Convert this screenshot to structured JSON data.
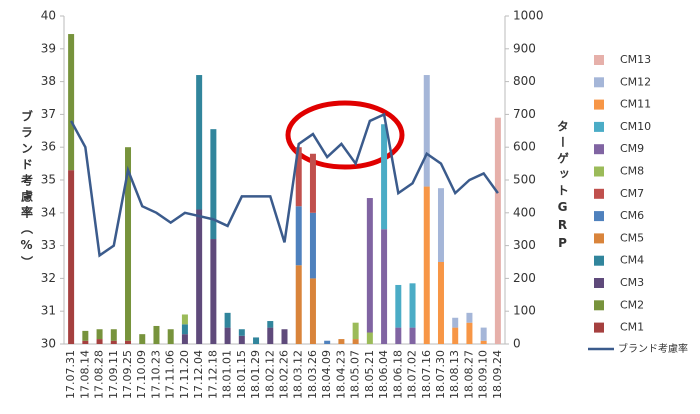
{
  "chart_data": {
    "type": "combo",
    "y_label": "ブランド考慮率（%）",
    "y2_label": "ターゲットGRP",
    "categories": [
      "17.07.31",
      "17.08.14",
      "17.08.28",
      "17.09.11",
      "17.09.25",
      "17.10.09",
      "17.10.23",
      "17.11.06",
      "17.11.20",
      "17.12.04",
      "17.12.18",
      "18.01.01",
      "18.01.15",
      "18.01.29",
      "18.02.12",
      "18.02.26",
      "18.03.12",
      "18.03.26",
      "18.04.09",
      "18.04.23",
      "18.05.07",
      "18.05.21",
      "18.06.04",
      "18.06.18",
      "18.07.02",
      "18.07.16",
      "18.07.30",
      "18.08.13",
      "18.08.27",
      "18.09.10",
      "18.09.24"
    ],
    "ylim": [
      30,
      40
    ],
    "yticks": [
      30,
      31,
      32,
      33,
      34,
      35,
      36,
      37,
      38,
      39,
      40
    ],
    "y2lim": [
      0,
      1000
    ],
    "y2ticks": [
      0,
      100,
      200,
      300,
      400,
      500,
      600,
      700,
      800,
      900,
      1000
    ],
    "grid": false,
    "series": [
      {
        "name": "CM1",
        "type": "bar",
        "axis": "y2",
        "color": "#a5403f",
        "values": [
          530,
          10,
          15,
          10,
          10,
          0,
          0,
          0,
          0,
          0,
          0,
          0,
          0,
          0,
          0,
          0,
          0,
          0,
          0,
          0,
          0,
          0,
          0,
          0,
          0,
          0,
          0,
          0,
          0,
          0,
          0
        ]
      },
      {
        "name": "CM2",
        "type": "bar",
        "axis": "y2",
        "color": "#77933c",
        "values": [
          415,
          30,
          30,
          35,
          590,
          30,
          55,
          45,
          0,
          0,
          0,
          0,
          0,
          0,
          0,
          0,
          0,
          0,
          0,
          0,
          0,
          0,
          0,
          0,
          0,
          0,
          0,
          0,
          0,
          0,
          0
        ]
      },
      {
        "name": "CM3",
        "type": "bar",
        "axis": "y2",
        "color": "#5f4a7b",
        "values": [
          0,
          0,
          0,
          0,
          0,
          0,
          0,
          0,
          30,
          410,
          320,
          50,
          25,
          0,
          50,
          45,
          0,
          0,
          0,
          0,
          0,
          0,
          0,
          0,
          0,
          0,
          0,
          0,
          0,
          0,
          0
        ]
      },
      {
        "name": "CM4",
        "type": "bar",
        "axis": "y2",
        "color": "#31859c",
        "values": [
          0,
          0,
          0,
          0,
          0,
          0,
          0,
          0,
          30,
          410,
          335,
          45,
          20,
          20,
          20,
          0,
          0,
          0,
          0,
          0,
          0,
          0,
          0,
          0,
          0,
          0,
          0,
          0,
          0,
          0,
          0
        ]
      },
      {
        "name": "CM5",
        "type": "bar",
        "axis": "y2",
        "color": "#d9843b",
        "values": [
          0,
          0,
          0,
          0,
          0,
          0,
          0,
          0,
          0,
          0,
          0,
          0,
          0,
          0,
          0,
          0,
          240,
          200,
          0,
          15,
          15,
          0,
          0,
          0,
          0,
          0,
          0,
          0,
          0,
          0,
          0
        ]
      },
      {
        "name": "CM6",
        "type": "bar",
        "axis": "y2",
        "color": "#4f81bd",
        "values": [
          0,
          0,
          0,
          0,
          0,
          0,
          0,
          0,
          0,
          0,
          0,
          0,
          0,
          0,
          0,
          0,
          180,
          200,
          10,
          0,
          0,
          0,
          0,
          0,
          0,
          0,
          0,
          0,
          0,
          0,
          0
        ]
      },
      {
        "name": "CM7",
        "type": "bar",
        "axis": "y2",
        "color": "#c0504d",
        "values": [
          0,
          0,
          0,
          0,
          0,
          0,
          0,
          0,
          0,
          0,
          0,
          0,
          0,
          0,
          0,
          0,
          180,
          180,
          0,
          0,
          0,
          0,
          0,
          0,
          0,
          0,
          0,
          0,
          0,
          0,
          0
        ]
      },
      {
        "name": "CM8",
        "type": "bar",
        "axis": "y2",
        "color": "#9bbb59",
        "values": [
          0,
          0,
          0,
          0,
          0,
          0,
          0,
          0,
          30,
          0,
          0,
          0,
          0,
          0,
          0,
          0,
          0,
          0,
          0,
          0,
          50,
          35,
          0,
          0,
          0,
          0,
          0,
          0,
          0,
          0,
          0
        ]
      },
      {
        "name": "CM9",
        "type": "bar",
        "axis": "y2",
        "color": "#8064a2",
        "values": [
          0,
          0,
          0,
          0,
          0,
          0,
          0,
          0,
          0,
          0,
          0,
          0,
          0,
          0,
          0,
          0,
          0,
          0,
          0,
          0,
          0,
          410,
          350,
          50,
          50,
          0,
          0,
          0,
          0,
          0,
          0
        ]
      },
      {
        "name": "CM10",
        "type": "bar",
        "axis": "y2",
        "color": "#4bacc6",
        "values": [
          0,
          0,
          0,
          0,
          0,
          0,
          0,
          0,
          0,
          0,
          0,
          0,
          0,
          0,
          0,
          0,
          0,
          0,
          0,
          0,
          0,
          0,
          320,
          130,
          135,
          0,
          0,
          0,
          0,
          0,
          0
        ]
      },
      {
        "name": "CM11",
        "type": "bar",
        "axis": "y2",
        "color": "#f79646",
        "values": [
          0,
          0,
          0,
          0,
          0,
          0,
          0,
          0,
          0,
          0,
          0,
          0,
          0,
          0,
          0,
          0,
          0,
          0,
          0,
          0,
          0,
          0,
          0,
          0,
          0,
          480,
          250,
          50,
          65,
          10,
          0
        ]
      },
      {
        "name": "CM12",
        "type": "bar",
        "axis": "y2",
        "color": "#a5b6d8",
        "values": [
          0,
          0,
          0,
          0,
          0,
          0,
          0,
          0,
          0,
          0,
          0,
          0,
          0,
          0,
          0,
          0,
          0,
          0,
          0,
          0,
          0,
          0,
          0,
          0,
          0,
          340,
          225,
          30,
          30,
          40,
          0
        ]
      },
      {
        "name": "CM13",
        "type": "bar",
        "axis": "y2",
        "color": "#e6b0aa",
        "values": [
          0,
          0,
          0,
          0,
          0,
          0,
          0,
          0,
          0,
          0,
          0,
          0,
          0,
          0,
          0,
          0,
          0,
          0,
          0,
          0,
          0,
          0,
          0,
          0,
          0,
          0,
          0,
          0,
          0,
          0,
          690
        ]
      },
      {
        "name": "ブランド考慮率",
        "type": "line",
        "axis": "y",
        "color": "#3b5b8c",
        "values": [
          36.8,
          36.0,
          32.7,
          33.0,
          35.3,
          34.2,
          34.0,
          33.7,
          34.0,
          33.9,
          33.8,
          33.6,
          34.5,
          34.5,
          34.5,
          33.1,
          36.1,
          36.4,
          35.7,
          36.1,
          35.5,
          36.8,
          37.0,
          34.6,
          34.9,
          35.8,
          35.5,
          34.6,
          35.0,
          35.2,
          34.6
        ]
      }
    ]
  }
}
